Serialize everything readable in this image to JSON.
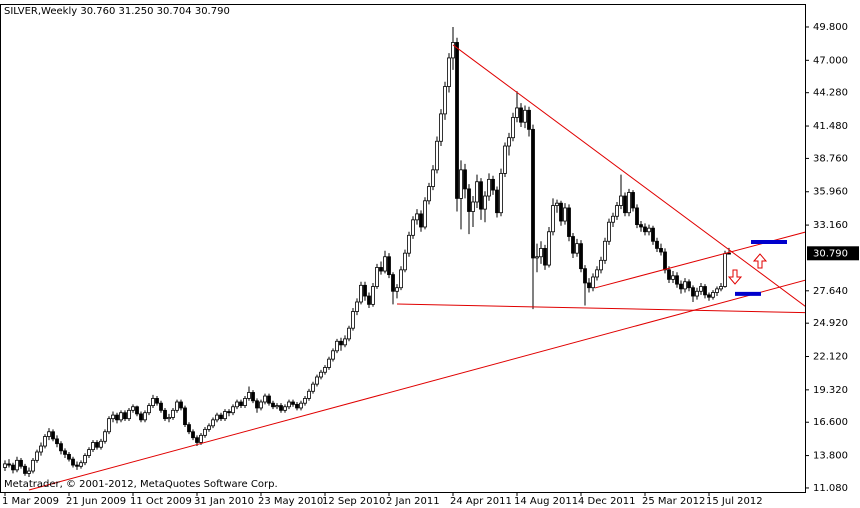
{
  "chart_data": {
    "type": "candlestick",
    "header": "SILVER,Weekly  30.760 31.250 30.704 30.790",
    "footer": "Metatrader, © 2001-2012, MetaQuotes Software Corp.",
    "colors": {
      "up": "#ffffff",
      "down": "#000000",
      "wick": "#000000",
      "trendline": "#e00000",
      "level": "#0000cc"
    },
    "ylim": [
      10.74,
      51.73
    ],
    "yticks": [
      {
        "value": 11.08,
        "label": "11.080"
      },
      {
        "value": 13.8,
        "label": "13.800"
      },
      {
        "value": 16.6,
        "label": "16.600"
      },
      {
        "value": 19.32,
        "label": "19.320"
      },
      {
        "value": 22.12,
        "label": "22.120"
      },
      {
        "value": 24.92,
        "label": "24.920"
      },
      {
        "value": 27.64,
        "label": "27.640"
      },
      {
        "value": 33.16,
        "label": "33.160"
      },
      {
        "value": 35.96,
        "label": "35.960"
      },
      {
        "value": 38.76,
        "label": "38.760"
      },
      {
        "value": 41.48,
        "label": "41.480"
      },
      {
        "value": 44.28,
        "label": "44.280"
      },
      {
        "value": 47,
        "label": "47.000"
      },
      {
        "value": 49.8,
        "label": "49.800"
      }
    ],
    "current_price": {
      "value": 30.79,
      "label": "30.790"
    },
    "categories": [
      "1 Mar 2009",
      null,
      null,
      null,
      null,
      null,
      null,
      null,
      null,
      null,
      null,
      null,
      null,
      null,
      null,
      null,
      "21 Jun 2009",
      null,
      null,
      null,
      null,
      null,
      null,
      null,
      null,
      null,
      null,
      null,
      null,
      null,
      null,
      null,
      "11 Oct 2009",
      null,
      null,
      null,
      null,
      null,
      null,
      null,
      null,
      null,
      null,
      null,
      null,
      null,
      null,
      null,
      "31 Jan 2010",
      null,
      null,
      null,
      null,
      null,
      null,
      null,
      null,
      null,
      null,
      null,
      null,
      null,
      null,
      null,
      "23 May 2010",
      null,
      null,
      null,
      null,
      null,
      null,
      null,
      null,
      null,
      null,
      null,
      null,
      null,
      null,
      null,
      "12 Sep 2010",
      null,
      null,
      null,
      null,
      null,
      null,
      null,
      null,
      null,
      null,
      null,
      null,
      null,
      null,
      null,
      "2 Jan 2011",
      null,
      null,
      null,
      null,
      null,
      null,
      null,
      null,
      null,
      null,
      null,
      null,
      null,
      null,
      null,
      "24 Apr 2011",
      null,
      null,
      null,
      null,
      null,
      null,
      null,
      null,
      null,
      null,
      null,
      null,
      null,
      null,
      null,
      "14 Aug 2011",
      null,
      null,
      null,
      null,
      null,
      null,
      null,
      null,
      null,
      null,
      null,
      null,
      null,
      null,
      null,
      "4 Dec 2011",
      null,
      null,
      null,
      null,
      null,
      null,
      null,
      null,
      null,
      null,
      null,
      null,
      null,
      null,
      null,
      "25 Mar 2012",
      null,
      null,
      null,
      null,
      null,
      null,
      null,
      null,
      null,
      null,
      null,
      null,
      null,
      null,
      null,
      "15 Jul 2012",
      null,
      null,
      null,
      null,
      null
    ],
    "candles": [
      [
        12.8,
        13.4,
        12.5,
        13.1
      ],
      [
        13.1,
        13.5,
        12.8,
        13.0
      ],
      [
        13.0,
        13.2,
        12.3,
        12.6
      ],
      [
        12.6,
        13.7,
        12.4,
        13.4
      ],
      [
        13.4,
        13.6,
        12.7,
        12.9
      ],
      [
        12.9,
        13.1,
        12.1,
        12.3
      ],
      [
        12.3,
        12.8,
        12.0,
        12.5
      ],
      [
        12.5,
        13.6,
        12.3,
        13.4
      ],
      [
        13.4,
        14.3,
        13.2,
        14.1
      ],
      [
        14.1,
        14.9,
        13.8,
        14.6
      ],
      [
        14.6,
        15.6,
        14.4,
        15.4
      ],
      [
        15.4,
        16.1,
        15.1,
        15.8
      ],
      [
        15.8,
        16.0,
        15.0,
        15.2
      ],
      [
        15.2,
        15.5,
        14.5,
        14.8
      ],
      [
        14.8,
        15.0,
        13.9,
        14.2
      ],
      [
        14.2,
        14.4,
        13.6,
        13.9
      ],
      [
        13.9,
        14.1,
        13.3,
        13.5
      ],
      [
        13.5,
        13.7,
        12.8,
        13.0
      ],
      [
        13.0,
        13.3,
        12.6,
        12.9
      ],
      [
        12.9,
        13.4,
        12.7,
        13.2
      ],
      [
        13.2,
        14.0,
        13.0,
        13.8
      ],
      [
        13.8,
        14.5,
        13.6,
        14.3
      ],
      [
        14.3,
        15.1,
        14.1,
        14.9
      ],
      [
        14.9,
        15.1,
        14.3,
        14.5
      ],
      [
        14.5,
        15.2,
        14.3,
        15.0
      ],
      [
        15.0,
        16.0,
        14.8,
        15.8
      ],
      [
        15.8,
        17.1,
        15.6,
        16.9
      ],
      [
        16.9,
        17.5,
        16.6,
        17.2
      ],
      [
        17.2,
        17.4,
        16.5,
        16.8
      ],
      [
        16.8,
        17.6,
        16.6,
        17.4
      ],
      [
        17.4,
        17.6,
        16.7,
        16.9
      ],
      [
        16.9,
        17.8,
        16.7,
        17.6
      ],
      [
        17.6,
        18.1,
        17.4,
        17.9
      ],
      [
        17.9,
        18.0,
        17.1,
        17.3
      ],
      [
        17.3,
        17.5,
        16.6,
        16.8
      ],
      [
        16.8,
        17.6,
        16.6,
        17.4
      ],
      [
        17.4,
        18.2,
        17.2,
        18.0
      ],
      [
        18.0,
        18.9,
        17.8,
        18.6
      ],
      [
        18.6,
        18.8,
        18.0,
        18.2
      ],
      [
        18.2,
        18.4,
        17.4,
        17.6
      ],
      [
        17.6,
        17.8,
        16.7,
        16.9
      ],
      [
        16.9,
        17.3,
        16.6,
        17.0
      ],
      [
        17.0,
        17.8,
        16.8,
        17.6
      ],
      [
        17.6,
        18.5,
        17.4,
        18.3
      ],
      [
        18.3,
        18.5,
        17.6,
        17.8
      ],
      [
        17.8,
        18.0,
        16.2,
        16.4
      ],
      [
        16.4,
        16.6,
        15.6,
        15.8
      ],
      [
        15.8,
        16.0,
        15.1,
        15.3
      ],
      [
        15.3,
        15.5,
        14.6,
        14.9
      ],
      [
        14.9,
        15.7,
        14.7,
        15.5
      ],
      [
        15.5,
        16.2,
        15.3,
        16.0
      ],
      [
        16.0,
        16.5,
        15.8,
        16.3
      ],
      [
        16.3,
        17.0,
        16.1,
        16.8
      ],
      [
        16.8,
        17.4,
        16.6,
        17.2
      ],
      [
        17.2,
        17.4,
        16.7,
        16.9
      ],
      [
        16.9,
        17.7,
        16.7,
        17.5
      ],
      [
        17.5,
        17.7,
        17.1,
        17.4
      ],
      [
        17.4,
        18.1,
        17.2,
        17.9
      ],
      [
        17.9,
        18.5,
        17.7,
        18.3
      ],
      [
        18.3,
        18.5,
        17.8,
        18.0
      ],
      [
        18.0,
        18.8,
        17.8,
        18.6
      ],
      [
        18.6,
        19.6,
        18.4,
        19.1
      ],
      [
        19.1,
        19.3,
        18.2,
        18.4
      ],
      [
        18.4,
        18.6,
        17.4,
        17.8
      ],
      [
        17.8,
        18.5,
        17.6,
        18.3
      ],
      [
        18.3,
        19.0,
        18.1,
        18.8
      ],
      [
        18.8,
        19.0,
        18.0,
        18.2
      ],
      [
        18.2,
        18.4,
        17.7,
        17.9
      ],
      [
        17.9,
        18.2,
        17.7,
        18.0
      ],
      [
        18.0,
        18.2,
        17.4,
        17.6
      ],
      [
        17.6,
        18.1,
        17.4,
        17.9
      ],
      [
        17.9,
        18.5,
        17.7,
        18.3
      ],
      [
        18.3,
        18.5,
        17.9,
        18.1
      ],
      [
        18.1,
        18.3,
        17.6,
        17.8
      ],
      [
        17.8,
        18.4,
        17.6,
        18.2
      ],
      [
        18.2,
        18.8,
        18.0,
        18.6
      ],
      [
        18.6,
        19.4,
        18.4,
        19.2
      ],
      [
        19.2,
        20.0,
        19.0,
        19.8
      ],
      [
        19.8,
        20.6,
        19.6,
        20.4
      ],
      [
        20.4,
        21.0,
        20.2,
        20.8
      ],
      [
        20.8,
        21.4,
        20.6,
        21.2
      ],
      [
        21.2,
        22.1,
        21.0,
        21.9
      ],
      [
        21.9,
        22.8,
        21.7,
        22.6
      ],
      [
        22.6,
        23.6,
        22.4,
        23.4
      ],
      [
        23.4,
        23.7,
        22.6,
        23.1
      ],
      [
        23.1,
        23.9,
        22.9,
        23.6
      ],
      [
        23.6,
        24.7,
        23.4,
        24.5
      ],
      [
        24.5,
        26.2,
        24.3,
        25.9
      ],
      [
        25.9,
        27.0,
        25.6,
        26.7
      ],
      [
        26.7,
        28.4,
        26.5,
        28.1
      ],
      [
        28.1,
        28.4,
        26.8,
        27.2
      ],
      [
        27.2,
        27.5,
        26.2,
        26.5
      ],
      [
        26.5,
        28.3,
        26.3,
        28.0
      ],
      [
        28.0,
        29.9,
        27.8,
        29.6
      ],
      [
        29.6,
        30.1,
        29.0,
        29.3
      ],
      [
        29.3,
        31.0,
        29.1,
        30.5
      ],
      [
        30.5,
        30.8,
        28.7,
        29.0
      ],
      [
        29.0,
        29.2,
        26.5,
        27.6
      ],
      [
        27.6,
        28.2,
        27.0,
        27.9
      ],
      [
        27.9,
        29.7,
        27.7,
        29.4
      ],
      [
        29.4,
        31.1,
        29.2,
        30.8
      ],
      [
        30.8,
        32.6,
        30.5,
        32.3
      ],
      [
        32.3,
        33.9,
        32.0,
        33.6
      ],
      [
        33.6,
        34.5,
        33.2,
        34.1
      ],
      [
        34.1,
        34.4,
        32.6,
        33.0
      ],
      [
        33.0,
        35.5,
        32.8,
        35.2
      ],
      [
        35.2,
        36.7,
        34.9,
        36.4
      ],
      [
        36.4,
        38.2,
        36.1,
        37.8
      ],
      [
        37.8,
        40.6,
        37.5,
        40.2
      ],
      [
        40.2,
        42.9,
        39.8,
        42.5
      ],
      [
        42.5,
        45.2,
        42.0,
        44.8
      ],
      [
        44.8,
        47.6,
        44.3,
        47.2
      ],
      [
        47.2,
        49.8,
        46.2,
        48.5
      ],
      [
        48.5,
        48.9,
        34.3,
        35.4
      ],
      [
        35.4,
        38.6,
        32.8,
        37.8
      ],
      [
        37.8,
        38.3,
        35.4,
        36.2
      ],
      [
        36.2,
        36.6,
        32.4,
        34.3
      ],
      [
        34.3,
        35.6,
        33.0,
        35.1
      ],
      [
        35.1,
        37.4,
        34.6,
        36.8
      ],
      [
        36.8,
        37.1,
        33.6,
        34.5
      ],
      [
        34.5,
        36.0,
        33.4,
        35.6
      ],
      [
        35.6,
        37.5,
        35.2,
        37.0
      ],
      [
        37.0,
        37.3,
        35.7,
        36.1
      ],
      [
        36.1,
        36.4,
        33.8,
        34.2
      ],
      [
        34.2,
        37.9,
        33.9,
        37.5
      ],
      [
        37.5,
        40.1,
        37.2,
        39.8
      ],
      [
        39.8,
        40.9,
        39.0,
        40.5
      ],
      [
        40.5,
        42.6,
        40.2,
        42.2
      ],
      [
        42.2,
        44.4,
        41.8,
        43.0
      ],
      [
        43.0,
        43.4,
        41.4,
        41.8
      ],
      [
        41.8,
        43.2,
        41.3,
        42.8
      ],
      [
        42.8,
        43.1,
        40.6,
        41.2
      ],
      [
        41.2,
        41.6,
        26.1,
        30.4
      ],
      [
        30.4,
        31.6,
        29.2,
        30.5
      ],
      [
        30.5,
        31.8,
        29.9,
        31.2
      ],
      [
        31.2,
        31.5,
        29.4,
        29.8
      ],
      [
        29.8,
        33.0,
        29.6,
        32.6
      ],
      [
        32.6,
        35.4,
        32.3,
        34.8
      ],
      [
        34.8,
        35.3,
        34.2,
        35.0
      ],
      [
        35.0,
        35.2,
        33.1,
        33.5
      ],
      [
        33.5,
        35.0,
        33.2,
        34.6
      ],
      [
        34.6,
        34.9,
        31.8,
        32.2
      ],
      [
        32.2,
        32.5,
        30.4,
        30.8
      ],
      [
        30.8,
        32.0,
        30.5,
        31.6
      ],
      [
        31.6,
        31.9,
        29.2,
        29.5
      ],
      [
        29.5,
        29.8,
        26.4,
        28.3
      ],
      [
        28.3,
        28.7,
        27.5,
        27.9
      ],
      [
        27.9,
        29.1,
        27.6,
        28.8
      ],
      [
        28.8,
        29.7,
        28.5,
        29.4
      ],
      [
        29.4,
        30.5,
        29.1,
        30.2
      ],
      [
        30.2,
        32.1,
        29.9,
        31.8
      ],
      [
        31.8,
        33.7,
        31.5,
        33.4
      ],
      [
        33.4,
        34.2,
        33.0,
        33.9
      ],
      [
        33.9,
        35.1,
        33.6,
        34.8
      ],
      [
        34.8,
        37.4,
        34.5,
        35.6
      ],
      [
        35.6,
        35.9,
        33.9,
        34.2
      ],
      [
        34.2,
        36.2,
        33.9,
        35.9
      ],
      [
        35.9,
        36.1,
        34.3,
        34.6
      ],
      [
        34.6,
        34.9,
        32.9,
        33.2
      ],
      [
        33.2,
        33.5,
        32.6,
        33.0
      ],
      [
        33.0,
        33.3,
        32.3,
        32.6
      ],
      [
        32.6,
        33.2,
        32.3,
        32.9
      ],
      [
        32.9,
        33.1,
        31.5,
        31.8
      ],
      [
        31.8,
        32.1,
        30.9,
        31.2
      ],
      [
        31.2,
        31.6,
        30.6,
        30.9
      ],
      [
        30.9,
        31.2,
        29.1,
        29.4
      ],
      [
        29.4,
        29.7,
        28.3,
        28.6
      ],
      [
        28.6,
        29.3,
        28.3,
        28.9
      ],
      [
        28.9,
        29.2,
        27.9,
        28.2
      ],
      [
        28.2,
        28.5,
        27.4,
        27.8
      ],
      [
        27.8,
        28.7,
        27.5,
        28.4
      ],
      [
        28.4,
        28.6,
        27.6,
        27.9
      ],
      [
        27.9,
        28.1,
        26.7,
        27.2
      ],
      [
        27.2,
        27.9,
        26.9,
        27.6
      ],
      [
        27.6,
        28.3,
        27.3,
        28.0
      ],
      [
        28.0,
        28.2,
        27.0,
        27.3
      ],
      [
        27.3,
        27.5,
        26.8,
        27.1
      ],
      [
        27.1,
        27.7,
        26.9,
        27.5
      ],
      [
        27.5,
        28.0,
        27.2,
        27.8
      ],
      [
        27.8,
        28.3,
        27.6,
        28.0
      ],
      [
        28.0,
        31.0,
        27.9,
        30.76
      ],
      [
        30.76,
        31.25,
        30.704,
        30.79
      ]
    ],
    "trendlines": [
      {
        "start_index": 112,
        "start_price": 48.29,
        "end_index": 204,
        "end_price": 25.36
      },
      {
        "start_index": 147.5,
        "start_price": 27.88,
        "end_index": 204,
        "end_price": 32.92
      },
      {
        "start_index": 98,
        "start_price": 26.53,
        "end_index": 204,
        "end_price": 25.78
      },
      {
        "start_index": 6,
        "start_price": 10.91,
        "end_index": 204,
        "end_price": 28.89
      }
    ],
    "levels": [
      {
        "start_index": 186.5,
        "end_index": 195.5,
        "price": 31.74
      },
      {
        "start_index": 182.5,
        "end_index": 189,
        "price": 27.38
      }
    ]
  }
}
